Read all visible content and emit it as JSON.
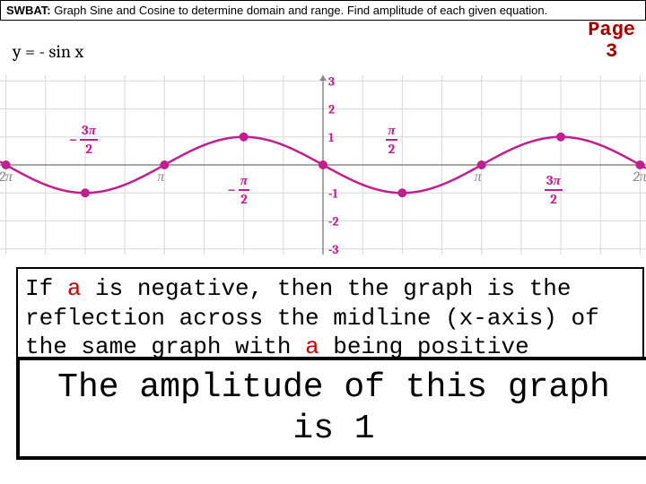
{
  "header": {
    "label": "SWBAT:",
    "text": "Graph Sine and Cosine to determine domain and range.  Find amplitude of each given equation."
  },
  "page": {
    "label_line1": "Page",
    "label_line2": "3"
  },
  "equation": {
    "text": "y = - sin x"
  },
  "chart": {
    "x_min": -6.4,
    "x_max": 6.4,
    "y_min": -3.2,
    "y_max": 3.2,
    "y_ticks": [
      3,
      2,
      1,
      -1,
      -2,
      -3
    ],
    "curve_color": "#c11f8e",
    "axis_color": "#888888",
    "grid_color": "#d8d8d8",
    "point_color": "#c11f8e",
    "background": "#ffffff",
    "x_labels": [
      {
        "v": -4.712,
        "num": "3π",
        "den": "2",
        "neg": true
      },
      {
        "v": -1.5708,
        "num": "π",
        "den": "2",
        "neg": true
      },
      {
        "v": 1.5708,
        "num": "π",
        "den": "2",
        "neg": false
      },
      {
        "v": 4.712,
        "num": "3π",
        "den": "2",
        "neg": false
      }
    ],
    "x_small_labels": [
      {
        "v": -6.283,
        "t": "2π"
      },
      {
        "v": -3.1416,
        "t": "π"
      },
      {
        "v": 3.1416,
        "t": "π"
      },
      {
        "v": 6.283,
        "t": "2π"
      }
    ],
    "points_x": [
      -6.283,
      -4.712,
      -3.1416,
      -1.5708,
      0,
      1.5708,
      3.1416,
      4.712,
      6.283
    ]
  },
  "box1": {
    "pre": "If ",
    "a1": "a",
    "mid": " is negative, then the graph is the reflection across the midline (x-axis) of the same graph with ",
    "a2": "a",
    "post": " being positive"
  },
  "box2": {
    "text": "The amplitude of this graph is 1"
  }
}
